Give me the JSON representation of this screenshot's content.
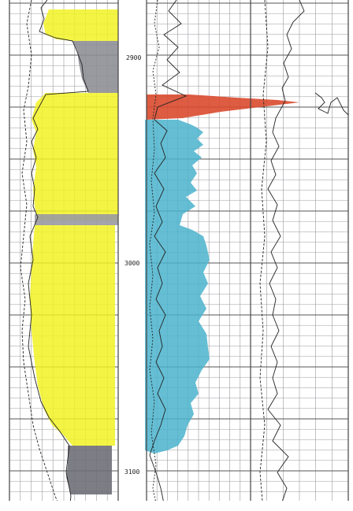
{
  "log": {
    "depth_labels": [
      "2900",
      "3000",
      "3100"
    ],
    "colors": {
      "sand": "#f2f224",
      "shale": "#8e8e96",
      "gas": "#d94a2e",
      "water": "#4ab3cc",
      "grid": "#9a9aa0",
      "grid_dark": "#555",
      "paper": "#ffffff",
      "ink": "#222222"
    }
  }
}
